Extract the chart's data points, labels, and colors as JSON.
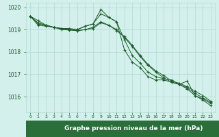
{
  "title": "Graphe pression niveau de la mer (hPa)",
  "bg_color": "#d4f0ec",
  "grid_color": "#b0d8d0",
  "line_color": "#1a5c2a",
  "label_bg": "#2a6e3a",
  "ylim": [
    1015.3,
    1020.2
  ],
  "yticks": [
    1016,
    1017,
    1018,
    1019,
    1020
  ],
  "series": [
    [
      1019.6,
      1019.4,
      1019.2,
      1019.1,
      1019.05,
      1019.05,
      1019.0,
      1019.15,
      1019.25,
      1019.9,
      1019.55,
      1019.35,
      1018.1,
      1017.55,
      1017.3,
      1016.9,
      1016.75,
      1016.75,
      1016.65,
      1016.55,
      1016.7,
      1016.05,
      1015.85,
      1015.6
    ],
    [
      1019.6,
      1019.3,
      1019.2,
      1019.1,
      1019.05,
      1019.0,
      1019.0,
      1019.15,
      1019.25,
      1019.7,
      1019.55,
      1019.35,
      1018.55,
      1017.85,
      1017.5,
      1017.1,
      1016.9,
      1016.8,
      1016.75,
      1016.55,
      1016.35,
      1016.05,
      1015.9,
      1015.7
    ],
    [
      1019.6,
      1019.25,
      1019.2,
      1019.1,
      1019.05,
      1019.0,
      1018.95,
      1019.0,
      1019.1,
      1019.35,
      1019.2,
      1019.0,
      1018.65,
      1018.25,
      1017.8,
      1017.4,
      1017.1,
      1016.85,
      1016.65,
      1016.55,
      1016.4,
      1016.15,
      1015.95,
      1015.75
    ],
    [
      1019.6,
      1019.2,
      1019.15,
      1019.1,
      1019.0,
      1018.98,
      1018.95,
      1019.0,
      1019.05,
      1019.3,
      1019.2,
      1018.95,
      1018.7,
      1018.3,
      1017.85,
      1017.45,
      1017.15,
      1016.95,
      1016.7,
      1016.6,
      1016.45,
      1016.25,
      1016.05,
      1015.8
    ]
  ]
}
